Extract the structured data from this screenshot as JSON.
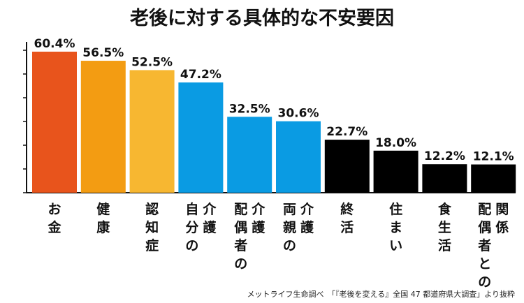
{
  "chart_data": {
    "type": "bar",
    "title": "老後に対する具体的な不安要因",
    "categories": [
      "お金",
      "健康",
      "認知症",
      "自分の介護",
      "配偶者の介護",
      "両親の介護",
      "終活",
      "住まい",
      "食生活",
      "配偶者との関係"
    ],
    "values": [
      60.4,
      56.5,
      52.5,
      47.2,
      32.5,
      30.6,
      22.7,
      18.0,
      12.2,
      12.1
    ],
    "value_labels": [
      "60.4%",
      "56.5%",
      "52.5%",
      "47.2%",
      "32.5%",
      "30.6%",
      "22.7%",
      "18.0%",
      "12.2%",
      "12.1%"
    ],
    "category_columns": [
      [
        "お金"
      ],
      [
        "健康"
      ],
      [
        "認知症"
      ],
      [
        "介護",
        "自分の"
      ],
      [
        "介護",
        "配偶者の"
      ],
      [
        "介護",
        "両親の"
      ],
      [
        "終活"
      ],
      [
        "住まい"
      ],
      [
        "食生活"
      ],
      [
        "関係",
        "配偶者との"
      ]
    ],
    "colors": [
      "#e8541c",
      "#f39c12",
      "#f7b731",
      "#0a9be3",
      "#0a9be3",
      "#0a9be3",
      "#000000",
      "#000000",
      "#000000",
      "#000000"
    ],
    "ylim": [
      0,
      60.4
    ],
    "grid": false,
    "source": "メットライフ生命調べ　「『老後を変える』全国 47 都道府県大調査」より抜粋"
  }
}
